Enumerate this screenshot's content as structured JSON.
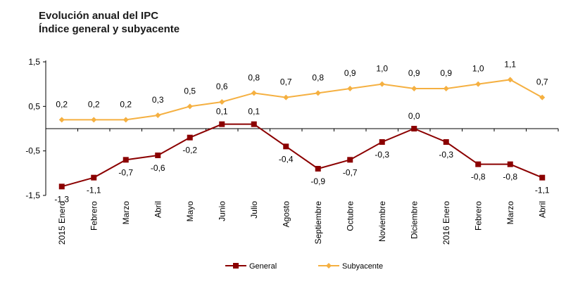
{
  "chart_data": {
    "type": "line",
    "title": "Evolución anual del IPC",
    "subtitle": "Índice general y subyacente",
    "categories": [
      "2015 Enero",
      "Febrero",
      "Marzo",
      "Abril",
      "Mayo",
      "Junio",
      "Julio",
      "Agosto",
      "Septiembre",
      "Octubre",
      "Noviembre",
      "Diciembre",
      "2016 Enero",
      "Febrero",
      "Marzo",
      "Abril"
    ],
    "yticks": [
      "1,5",
      "0,5",
      "-0,5",
      "-1,5"
    ],
    "ylim": [
      -1.5,
      1.5
    ],
    "grid": false,
    "legend_position": "bottom",
    "series": [
      {
        "name": "General",
        "color": "#8b0000",
        "marker": "square",
        "values": [
          -1.3,
          -1.1,
          -0.7,
          -0.6,
          -0.2,
          0.1,
          0.1,
          -0.4,
          -0.9,
          -0.7,
          -0.3,
          0.0,
          -0.3,
          -0.8,
          -0.8,
          -1.1
        ],
        "labels": [
          "-1,3",
          "-1,1",
          "-0,7",
          "-0,6",
          "-0,2",
          "0,1",
          "0,1",
          "-0,4",
          "-0,9",
          "-0,7",
          "-0,3",
          "0,0",
          "-0,3",
          "-0,8",
          "-0,8",
          "-1,1"
        ]
      },
      {
        "name": "Subyacente",
        "color": "#f5b041",
        "marker": "diamond",
        "values": [
          0.2,
          0.2,
          0.2,
          0.3,
          0.5,
          0.6,
          0.8,
          0.7,
          0.8,
          0.9,
          1.0,
          0.9,
          0.9,
          1.0,
          1.1,
          0.7
        ],
        "labels": [
          "0,2",
          "0,2",
          "0,2",
          "0,3",
          "0,5",
          "0,6",
          "0,8",
          "0,7",
          "0,8",
          "0,9",
          "1,0",
          "0,9",
          "0,9",
          "1,0",
          "1,1",
          "0,7"
        ]
      }
    ]
  }
}
